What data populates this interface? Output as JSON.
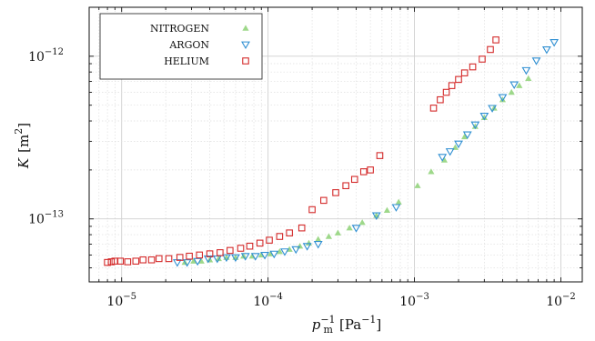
{
  "chart_data": {
    "type": "scatter",
    "xscale": "log",
    "yscale": "log",
    "xlim": [
      6e-06,
      0.014
    ],
    "ylim": [
      4.1e-14,
      2e-12
    ],
    "xlabel": {
      "main": "p",
      "sub": "m",
      "sup": "−1",
      "unit": "[Pa",
      "unit_sup": "−1",
      "unit_end": "]"
    },
    "ylabel": {
      "main": "K",
      "unit": "[m",
      "unit_sup": "2",
      "unit_end": "]"
    },
    "xticks": [
      {
        "value": 1e-05,
        "base": "10",
        "exp": "−5"
      },
      {
        "value": 0.0001,
        "base": "10",
        "exp": "−4"
      },
      {
        "value": 0.001,
        "base": "10",
        "exp": "−3"
      },
      {
        "value": 0.01,
        "base": "10",
        "exp": "−2"
      }
    ],
    "yticks": [
      {
        "value": 1e-13,
        "base": "10",
        "exp": "−13"
      },
      {
        "value": 1e-12,
        "base": "10",
        "exp": "−12"
      }
    ],
    "grid": true,
    "legend_position": "top-left",
    "series": [
      {
        "name": "NITROGEN",
        "marker": "triangle-up",
        "color": "#9ed88a",
        "points": [
          [
            2.7e-05,
            5.4e-14
          ],
          [
            3.1e-05,
            5.5e-14
          ],
          [
            3.5e-05,
            5.5e-14
          ],
          [
            4e-05,
            5.6e-14
          ],
          [
            4.6e-05,
            5.7e-14
          ],
          [
            5.2e-05,
            5.8e-14
          ],
          [
            6e-05,
            5.8e-14
          ],
          [
            6.8e-05,
            5.9e-14
          ],
          [
            7.8e-05,
            5.9e-14
          ],
          [
            9e-05,
            6e-14
          ],
          [
            0.000104,
            6.1e-14
          ],
          [
            0.00012,
            6.3e-14
          ],
          [
            0.00014,
            6.5e-14
          ],
          [
            0.000165,
            6.8e-14
          ],
          [
            0.00019,
            7.1e-14
          ],
          [
            0.00022,
            7.5e-14
          ],
          [
            0.00026,
            7.8e-14
          ],
          [
            0.0003,
            8.2e-14
          ],
          [
            0.00036,
            8.8e-14
          ],
          [
            0.00044,
            9.5e-14
          ],
          [
            0.00055,
            1.05e-13
          ],
          [
            0.00065,
            1.13e-13
          ],
          [
            0.00078,
            1.27e-13
          ],
          [
            0.00105,
            1.6e-13
          ],
          [
            0.0013,
            1.95e-13
          ],
          [
            0.0016,
            2.3e-13
          ],
          [
            0.0019,
            2.75e-13
          ],
          [
            0.0022,
            3.2e-13
          ],
          [
            0.0026,
            3.7e-13
          ],
          [
            0.003,
            4.2e-13
          ],
          [
            0.0035,
            4.8e-13
          ],
          [
            0.004,
            5.4e-13
          ],
          [
            0.0046,
            6e-13
          ],
          [
            0.0052,
            6.6e-13
          ],
          [
            0.006,
            7.3e-13
          ]
        ]
      },
      {
        "name": "ARGON",
        "marker": "triangle-down",
        "color": "#2f8fd2",
        "points": [
          [
            2.4e-05,
            5.4e-14
          ],
          [
            2.8e-05,
            5.4e-14
          ],
          [
            3.3e-05,
            5.5e-14
          ],
          [
            3.9e-05,
            5.7e-14
          ],
          [
            4.5e-05,
            5.7e-14
          ],
          [
            5.2e-05,
            5.8e-14
          ],
          [
            6e-05,
            5.8e-14
          ],
          [
            7e-05,
            5.9e-14
          ],
          [
            8.2e-05,
            5.9e-14
          ],
          [
            9.5e-05,
            6e-14
          ],
          [
            0.00011,
            6.1e-14
          ],
          [
            0.00013,
            6.3e-14
          ],
          [
            0.000155,
            6.5e-14
          ],
          [
            0.000185,
            6.8e-14
          ],
          [
            0.00022,
            7e-14
          ],
          [
            0.0004,
            8.8e-14
          ],
          [
            0.00055,
            1.05e-13
          ],
          [
            0.00075,
            1.18e-13
          ],
          [
            0.00155,
            2.4e-13
          ],
          [
            0.00175,
            2.6e-13
          ],
          [
            0.002,
            2.9e-13
          ],
          [
            0.0023,
            3.3e-13
          ],
          [
            0.0026,
            3.8e-13
          ],
          [
            0.003,
            4.3e-13
          ],
          [
            0.0034,
            4.8e-13
          ],
          [
            0.004,
            5.6e-13
          ],
          [
            0.0048,
            6.7e-13
          ],
          [
            0.0058,
            8.2e-13
          ],
          [
            0.0068,
            9.4e-13
          ],
          [
            0.008,
            1.1e-12
          ],
          [
            0.009,
            1.22e-12
          ]
        ]
      },
      {
        "name": "HELIUM",
        "marker": "square",
        "color": "#d42a2a",
        "points": [
          [
            8e-06,
            5.4e-14
          ],
          [
            8.5e-06,
            5.45e-14
          ],
          [
            9e-06,
            5.5e-14
          ],
          [
            9.8e-06,
            5.5e-14
          ],
          [
            1.1e-05,
            5.45e-14
          ],
          [
            1.25e-05,
            5.5e-14
          ],
          [
            1.4e-05,
            5.6e-14
          ],
          [
            1.6e-05,
            5.6e-14
          ],
          [
            1.8e-05,
            5.7e-14
          ],
          [
            2.1e-05,
            5.7e-14
          ],
          [
            2.5e-05,
            5.8e-14
          ],
          [
            2.9e-05,
            5.9e-14
          ],
          [
            3.4e-05,
            6e-14
          ],
          [
            4e-05,
            6.1e-14
          ],
          [
            4.7e-05,
            6.2e-14
          ],
          [
            5.5e-05,
            6.4e-14
          ],
          [
            6.5e-05,
            6.6e-14
          ],
          [
            7.5e-05,
            6.8e-14
          ],
          [
            8.8e-05,
            7.1e-14
          ],
          [
            0.000102,
            7.4e-14
          ],
          [
            0.00012,
            7.8e-14
          ],
          [
            0.00014,
            8.2e-14
          ],
          [
            0.00017,
            8.8e-14
          ],
          [
            0.0002,
            1.14e-13
          ],
          [
            0.00024,
            1.3e-13
          ],
          [
            0.00029,
            1.45e-13
          ],
          [
            0.00034,
            1.6e-13
          ],
          [
            0.00039,
            1.75e-13
          ],
          [
            0.00045,
            1.95e-13
          ],
          [
            0.0005,
            2e-13
          ],
          [
            0.00058,
            2.45e-13
          ],
          [
            0.00135,
            4.8e-13
          ],
          [
            0.0015,
            5.4e-13
          ],
          [
            0.00165,
            6e-13
          ],
          [
            0.0018,
            6.6e-13
          ],
          [
            0.002,
            7.2e-13
          ],
          [
            0.0022,
            7.9e-13
          ],
          [
            0.0025,
            8.6e-13
          ],
          [
            0.0029,
            9.6e-13
          ],
          [
            0.0033,
            1.1e-12
          ],
          [
            0.0036,
            1.26e-12
          ]
        ]
      }
    ]
  }
}
